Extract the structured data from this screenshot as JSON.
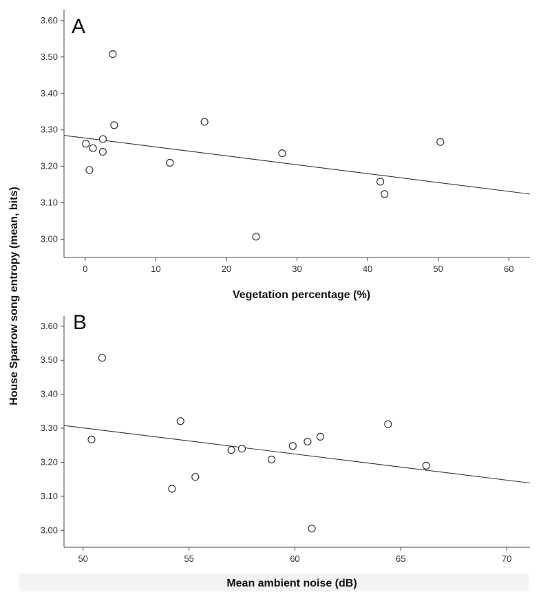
{
  "shared_ylabel": "House Sparrow song entropy (mean, bits)",
  "chart_data": [
    {
      "type": "scatter",
      "panel_label": "A",
      "xlabel": "Vegetation percentage (%)",
      "ylabel": "House Sparrow song entropy (mean, bits)",
      "xlim": [
        -3,
        63
      ],
      "ylim": [
        2.95,
        3.63
      ],
      "xticks": [
        0,
        10,
        20,
        30,
        40,
        50,
        60
      ],
      "yticks": [
        "3.00",
        "3.10",
        "3.20",
        "3.30",
        "3.40",
        "3.50",
        "3.60"
      ],
      "points": [
        {
          "x": 3.9,
          "y": 3.508
        },
        {
          "x": 0.1,
          "y": 3.262
        },
        {
          "x": 1.1,
          "y": 3.25
        },
        {
          "x": 2.5,
          "y": 3.275
        },
        {
          "x": 2.5,
          "y": 3.24
        },
        {
          "x": 4.1,
          "y": 3.313
        },
        {
          "x": 0.6,
          "y": 3.19
        },
        {
          "x": 12.0,
          "y": 3.21
        },
        {
          "x": 16.9,
          "y": 3.322
        },
        {
          "x": 24.2,
          "y": 3.007
        },
        {
          "x": 27.9,
          "y": 3.236
        },
        {
          "x": 41.8,
          "y": 3.158
        },
        {
          "x": 42.4,
          "y": 3.124
        },
        {
          "x": 50.3,
          "y": 3.267
        }
      ],
      "fit_line": {
        "x1": -3,
        "y1": 3.285,
        "x2": 63,
        "y2": 3.124
      },
      "grid": false
    },
    {
      "type": "scatter",
      "panel_label": "B",
      "xlabel": "Mean ambient noise (dB)",
      "ylabel": "House Sparrow song entropy (mean, bits)",
      "xlim": [
        49.1,
        71.1
      ],
      "ylim": [
        2.95,
        3.63
      ],
      "xticks": [
        50,
        55,
        60,
        65,
        70
      ],
      "yticks": [
        "3.00",
        "3.10",
        "3.20",
        "3.30",
        "3.40",
        "3.50",
        "3.60"
      ],
      "points": [
        {
          "x": 50.9,
          "y": 3.507
        },
        {
          "x": 50.4,
          "y": 3.267
        },
        {
          "x": 54.6,
          "y": 3.321
        },
        {
          "x": 55.3,
          "y": 3.157
        },
        {
          "x": 54.2,
          "y": 3.122
        },
        {
          "x": 57.0,
          "y": 3.236
        },
        {
          "x": 57.5,
          "y": 3.24
        },
        {
          "x": 58.9,
          "y": 3.208
        },
        {
          "x": 59.9,
          "y": 3.248
        },
        {
          "x": 60.6,
          "y": 3.261
        },
        {
          "x": 61.2,
          "y": 3.275
        },
        {
          "x": 60.8,
          "y": 3.005
        },
        {
          "x": 64.4,
          "y": 3.312
        },
        {
          "x": 66.2,
          "y": 3.19
        }
      ],
      "fit_line": {
        "x1": 49.1,
        "y1": 3.308,
        "x2": 71.1,
        "y2": 3.139
      },
      "grid": false
    }
  ]
}
